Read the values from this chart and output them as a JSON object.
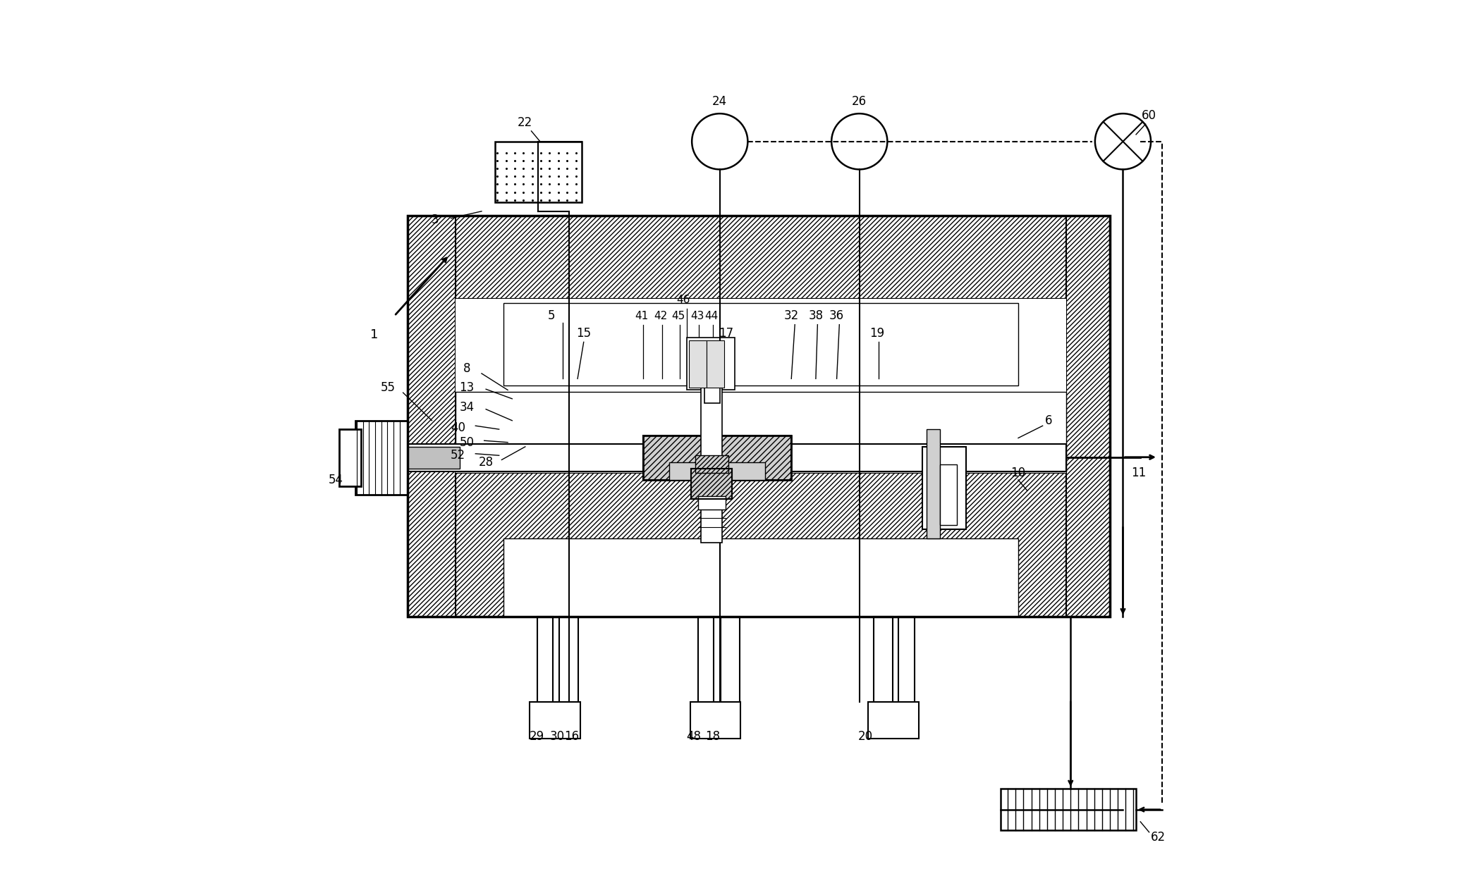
{
  "bg_color": "#ffffff",
  "line_color": "#000000",
  "fig_width": 20.96,
  "fig_height": 12.43
}
